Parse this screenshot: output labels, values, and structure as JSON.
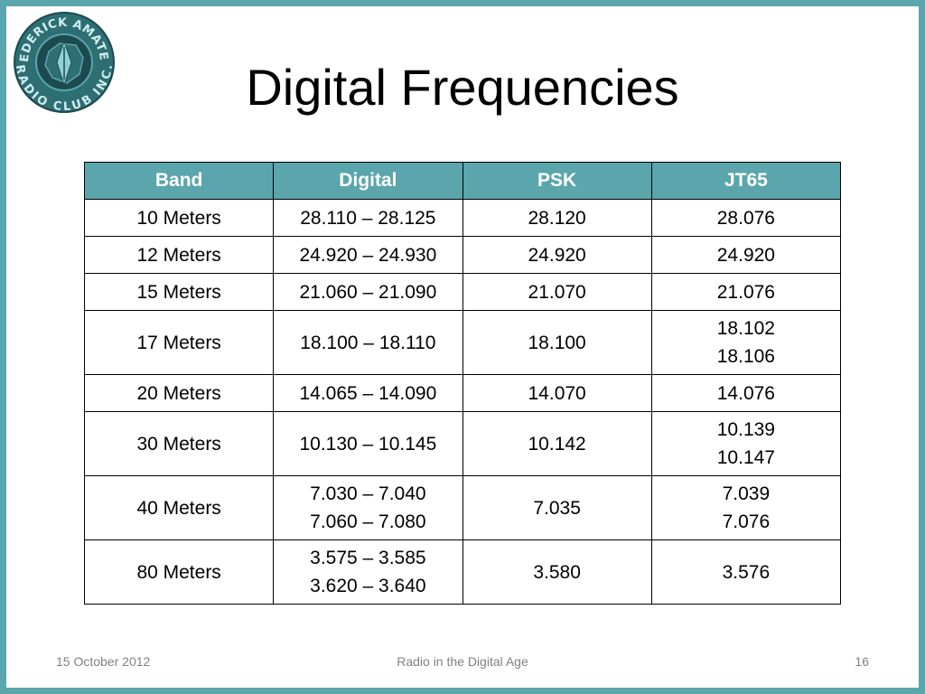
{
  "title": "Digital Frequencies",
  "logo": {
    "text_top": "FREDERICK AMATEUR",
    "text_bottom": "RADIO CLUB INC.",
    "colors": {
      "dark": "#1d4a4e",
      "mid": "#2e6f74",
      "light": "#5aa6ac"
    }
  },
  "table": {
    "headers": [
      "Band",
      "Digital",
      "PSK",
      "JT65"
    ],
    "rows": [
      {
        "band": "10 Meters",
        "digital": [
          "28.110 – 28.125"
        ],
        "psk": [
          "28.120"
        ],
        "jt65": [
          "28.076"
        ]
      },
      {
        "band": "12 Meters",
        "digital": [
          "24.920 – 24.930"
        ],
        "psk": [
          "24.920"
        ],
        "jt65": [
          "24.920"
        ]
      },
      {
        "band": "15 Meters",
        "digital": [
          "21.060 – 21.090"
        ],
        "psk": [
          "21.070"
        ],
        "jt65": [
          "21.076"
        ]
      },
      {
        "band": "17 Meters",
        "digital": [
          "18.100 – 18.110"
        ],
        "psk": [
          "18.100"
        ],
        "jt65": [
          "18.102",
          "18.106"
        ]
      },
      {
        "band": "20 Meters",
        "digital": [
          "14.065 – 14.090"
        ],
        "psk": [
          "14.070"
        ],
        "jt65": [
          "14.076"
        ]
      },
      {
        "band": "30 Meters",
        "digital": [
          "10.130 – 10.145"
        ],
        "psk": [
          "10.142"
        ],
        "jt65": [
          "10.139",
          "10.147"
        ]
      },
      {
        "band": "40 Meters",
        "digital": [
          "7.030 – 7.040",
          "7.060 – 7.080"
        ],
        "psk": [
          "7.035"
        ],
        "jt65": [
          "7.039",
          "7.076"
        ]
      },
      {
        "band": "80 Meters",
        "digital": [
          "3.575 – 3.585",
          "3.620 – 3.640"
        ],
        "psk": [
          "3.580"
        ],
        "jt65": [
          "3.576"
        ]
      }
    ]
  },
  "footer": {
    "date": "15 October 2012",
    "title": "Radio in the Digital Age",
    "page": "16"
  },
  "colors": {
    "accent": "#5aa6ac",
    "footer_text": "#808080"
  }
}
